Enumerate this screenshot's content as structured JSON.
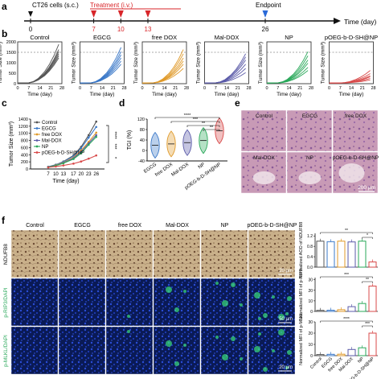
{
  "panel_letters": [
    "a",
    "b",
    "c",
    "d",
    "e",
    "f"
  ],
  "timeline": {
    "cells_label": "CT26 cells (s.c.)",
    "treatment_label": "Treatment (i.v.)",
    "endpoint_label": "Endpoint",
    "axis_label": "Time (day)",
    "ticks": [
      0,
      7,
      10,
      13,
      26
    ],
    "treatment_days": [
      7,
      10,
      13
    ],
    "endpoint_day": 26
  },
  "growth_panels": {
    "ylabel": "Tumor Size (mm³)",
    "xlabel": "Time (day)",
    "yticks": [
      "0",
      "500",
      "1000",
      "1500",
      "2000"
    ],
    "xticks": [
      "0",
      "7",
      "14",
      "21",
      "28"
    ],
    "groups": [
      {
        "name": "Control",
        "color": "#555555"
      },
      {
        "name": "EGCG",
        "color": "#3a78c8"
      },
      {
        "name": "free DOX",
        "color": "#e09a2a"
      },
      {
        "name": "Mal-DOX",
        "color": "#5a5aa8"
      },
      {
        "name": "NP",
        "color": "#2aa85a"
      },
      {
        "name": "pOEG-b-D-SH@NP",
        "color": "#d84a4a"
      }
    ]
  },
  "chart_data": [
    {
      "type": "line",
      "title": "",
      "xlabel": "Time (day)",
      "ylabel": "Tumor Size (mm³)",
      "x": [
        7,
        10,
        13,
        17,
        20,
        23,
        26
      ],
      "xticks": [
        "7",
        "10",
        "13",
        "17",
        "20",
        "23",
        "26"
      ],
      "yticks": [
        "0",
        "200",
        "400",
        "600",
        "800",
        "1000",
        "1200",
        "1400"
      ],
      "ylim": [
        0,
        1400
      ],
      "legend": "top-left",
      "significance": [
        "****",
        "***",
        "*"
      ],
      "series": [
        {
          "name": "Control",
          "color": "#555555",
          "values": [
            60,
            120,
            210,
            380,
            620,
            950,
            1330
          ]
        },
        {
          "name": "EGCG",
          "color": "#3a78c8",
          "values": [
            60,
            115,
            200,
            360,
            580,
            880,
            1180
          ]
        },
        {
          "name": "free DOX",
          "color": "#e09a2a",
          "values": [
            55,
            105,
            180,
            320,
            520,
            760,
            1020
          ]
        },
        {
          "name": "Mal-DOX",
          "color": "#5a5aa8",
          "values": [
            55,
            100,
            170,
            300,
            480,
            720,
            950
          ]
        },
        {
          "name": "NP",
          "color": "#2aa85a",
          "values": [
            50,
            95,
            160,
            280,
            440,
            680,
            900
          ]
        },
        {
          "name": "pOEG-b-D-SH@NP",
          "color": "#d84a4a",
          "values": [
            45,
            70,
            100,
            150,
            210,
            290,
            380
          ]
        }
      ]
    },
    {
      "type": "violin",
      "title": "",
      "ylabel": "TGI (%)",
      "yticks": [
        "-40",
        "0",
        "40",
        "80",
        "120"
      ],
      "ylim": [
        -40,
        120
      ],
      "categories": [
        "EGCG",
        "free DOX",
        "Mal-DOX",
        "NP",
        "pOEG-b-D-SH@NP"
      ],
      "values": [
        20,
        25,
        30,
        38,
        75
      ],
      "colors": [
        "#3a78c8",
        "#e09a2a",
        "#5a5aa8",
        "#2aa85a",
        "#d84a4a"
      ],
      "significance": [
        "****",
        "***",
        "**",
        "**"
      ]
    },
    {
      "type": "bar",
      "title": "",
      "ylabel": "Normalized AOD of NDUFB8",
      "categories": [
        "Control",
        "EGCG",
        "free DOX",
        "Mal-DOX",
        "NP",
        "pOEG-b-D-SH@NP"
      ],
      "values": [
        1.0,
        0.98,
        1.0,
        0.97,
        1.0,
        0.2
      ],
      "yticks": [
        "0.0",
        "0.4",
        "0.8",
        "1.2"
      ],
      "ylim": [
        0,
        1.3
      ],
      "significance": [
        "**",
        "*"
      ]
    },
    {
      "type": "bar",
      "title": "",
      "ylabel": "Normalized MFI of p-RIP3",
      "categories": [
        "Control",
        "EGCG",
        "free DOX",
        "Mal-DOX",
        "NP",
        "pOEG-b-D-SH@NP"
      ],
      "values": [
        1,
        1.1,
        1.6,
        4.5,
        7.5,
        24
      ],
      "yticks": [
        "0",
        "10",
        "20",
        "30"
      ],
      "ylim": [
        0,
        32
      ],
      "significance": [
        "***",
        "**"
      ]
    },
    {
      "type": "bar",
      "title": "",
      "ylabel": "Normalized MFI of p-MLKL",
      "categories": [
        "Control",
        "EGCG",
        "free DOX",
        "Mal-DOX",
        "NP",
        "pOEG-b-D-SH@NP"
      ],
      "values": [
        1,
        1.2,
        1.3,
        5.5,
        7,
        20
      ],
      "yticks": [
        "0",
        "10",
        "20",
        "30"
      ],
      "ylim": [
        0,
        30
      ],
      "significance": [
        "****",
        "***"
      ]
    }
  ],
  "histology_e": {
    "labels": [
      "Control",
      "EGCG",
      "free DOX",
      "Mal-DOX",
      "NP",
      "pOEG-b-D-SH@NP"
    ],
    "scale_bar": "200 µm"
  },
  "panel_f": {
    "columns": [
      "Control",
      "EGCG",
      "free DOX",
      "Mal-DOX",
      "NP",
      "pOEG-b-D-SH@NP"
    ],
    "rows": [
      {
        "label": "NDUFB8",
        "scale": "20 µm"
      },
      {
        "label": "p-RIP3/DAPI",
        "scale": "50 µm"
      },
      {
        "label": "p-MLKL/DAPI",
        "scale": "20 µm"
      }
    ]
  }
}
